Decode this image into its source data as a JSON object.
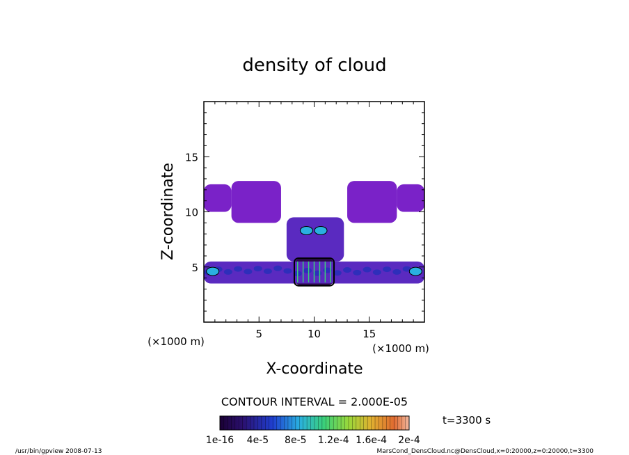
{
  "chart_data": {
    "type": "heatmap",
    "title": "density of cloud",
    "xlabel": "X-coordinate",
    "ylabel": "Z-coordinate",
    "x_unit": "(×1000 m)",
    "y_unit": "(×1000 m)",
    "xlim": [
      0,
      20
    ],
    "ylim": [
      0,
      20
    ],
    "x_ticks": [
      5,
      10,
      15
    ],
    "y_ticks": [
      5,
      10,
      15
    ],
    "contour_interval": "CONTOUR INTERVAL = 2.000E-05",
    "time_label": "t=3300 s",
    "colorbar_labels": [
      "1e-16",
      "4e-5",
      "8e-5",
      "1.2e-4",
      "1.6e-4",
      "2e-4"
    ],
    "colorbar_range": [
      0,
      0.0002
    ],
    "cloud_regions": [
      {
        "name": "upper-left arm",
        "x": [
          0,
          2.5
        ],
        "z": [
          10,
          12.5
        ],
        "level": "low"
      },
      {
        "name": "upper-left shoulder",
        "x": [
          2.5,
          7
        ],
        "z": [
          9,
          12.8
        ],
        "level": "low"
      },
      {
        "name": "upper-right shoulder",
        "x": [
          13,
          17.5
        ],
        "z": [
          9,
          12.8
        ],
        "level": "low"
      },
      {
        "name": "upper-right arm",
        "x": [
          17.5,
          20
        ],
        "z": [
          10,
          12.5
        ],
        "level": "low"
      },
      {
        "name": "central column",
        "x": [
          7.5,
          12.7
        ],
        "z": [
          5.5,
          9.5
        ],
        "level": "mid"
      },
      {
        "name": "central core",
        "x": [
          8.2,
          11.8
        ],
        "z": [
          3.3,
          5.8
        ],
        "level": "high"
      },
      {
        "name": "lower band",
        "x": [
          0,
          20
        ],
        "z": [
          3.5,
          5.5
        ],
        "level": "mid"
      }
    ]
  },
  "footer": {
    "left": "/usr/bin/gpview   2008-07-13",
    "right": "MarsCond_DensCloud.nc@DensCloud,x=0:20000,z=0:20000,t=3300"
  }
}
